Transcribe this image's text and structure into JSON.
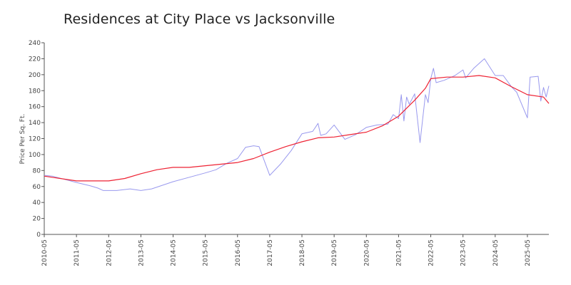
{
  "chart_data": {
    "type": "line",
    "title": "Residences at City Place vs Jacksonville",
    "xlabel": "",
    "ylabel": "Price Per Sq. Ft.",
    "ylim": [
      0,
      240
    ],
    "yticks": [
      0,
      20,
      40,
      60,
      80,
      100,
      120,
      140,
      160,
      180,
      200,
      220,
      240
    ],
    "xticks": [
      "2010-05",
      "2011-05",
      "2012-05",
      "2013-05",
      "2014-05",
      "2015-05",
      "2016-05",
      "2017-05",
      "2018-05",
      "2019-05",
      "2020-05",
      "2021-05",
      "2022-05",
      "2023-05",
      "2024-05",
      "2025-05"
    ],
    "xlim": [
      "2010-05",
      "2026-01"
    ],
    "grid": false,
    "legend": "none",
    "colors": {
      "series_1": "#9999ee",
      "series_2": "#ee2233"
    },
    "series": [
      {
        "values": [
          [
            "2010-05",
            74
          ],
          [
            "2010-08",
            73
          ],
          [
            "2011-05",
            65
          ],
          [
            "2011-10",
            61
          ],
          [
            "2012-01",
            58
          ],
          [
            "2012-03",
            55
          ],
          [
            "2012-08",
            55
          ],
          [
            "2013-01",
            57
          ],
          [
            "2013-05",
            55
          ],
          [
            "2013-09",
            57
          ],
          [
            "2014-05",
            66
          ],
          [
            "2015-05",
            77
          ],
          [
            "2015-09",
            81
          ],
          [
            "2016-01",
            89
          ],
          [
            "2016-05",
            95
          ],
          [
            "2016-08",
            109
          ],
          [
            "2016-11",
            111
          ],
          [
            "2017-01",
            110
          ],
          [
            "2017-05",
            74
          ],
          [
            "2017-09",
            88
          ],
          [
            "2018-01",
            105
          ],
          [
            "2018-05",
            126
          ],
          [
            "2018-09",
            129
          ],
          [
            "2018-11",
            139
          ],
          [
            "2018-12",
            124
          ],
          [
            "2019-02",
            126
          ],
          [
            "2019-05",
            137
          ],
          [
            "2019-09",
            119
          ],
          [
            "2020-01",
            125
          ],
          [
            "2020-05",
            134
          ],
          [
            "2020-09",
            137
          ],
          [
            "2021-01",
            138
          ],
          [
            "2021-03",
            150
          ],
          [
            "2021-05",
            145
          ],
          [
            "2021-06",
            175
          ],
          [
            "2021-07",
            142
          ],
          [
            "2021-08",
            172
          ],
          [
            "2021-09",
            163
          ],
          [
            "2021-11",
            176
          ],
          [
            "2022-01",
            115
          ],
          [
            "2022-03",
            175
          ],
          [
            "2022-04",
            165
          ],
          [
            "2022-05",
            195
          ],
          [
            "2022-06",
            208
          ],
          [
            "2022-07",
            190
          ],
          [
            "2022-10",
            193
          ],
          [
            "2023-02",
            199
          ],
          [
            "2023-05",
            206
          ],
          [
            "2023-06",
            196
          ],
          [
            "2023-09",
            208
          ],
          [
            "2023-11",
            214
          ],
          [
            "2024-01",
            220
          ],
          [
            "2024-05",
            199
          ],
          [
            "2024-08",
            199
          ],
          [
            "2024-11",
            185
          ],
          [
            "2025-01",
            178
          ],
          [
            "2025-05",
            146
          ],
          [
            "2025-06",
            197
          ],
          [
            "2025-09",
            198
          ],
          [
            "2025-10",
            167
          ],
          [
            "2025-11",
            184
          ],
          [
            "2025-12",
            172
          ],
          [
            "2026-01",
            186
          ]
        ]
      },
      {
        "values": [
          [
            "2010-05",
            73
          ],
          [
            "2011-05",
            67
          ],
          [
            "2012-05",
            67
          ],
          [
            "2012-11",
            70
          ],
          [
            "2013-05",
            76
          ],
          [
            "2013-11",
            81
          ],
          [
            "2014-05",
            84
          ],
          [
            "2014-11",
            84
          ],
          [
            "2015-05",
            86
          ],
          [
            "2015-11",
            88
          ],
          [
            "2016-05",
            90
          ],
          [
            "2016-11",
            95
          ],
          [
            "2017-05",
            103
          ],
          [
            "2017-11",
            110
          ],
          [
            "2018-05",
            116
          ],
          [
            "2018-11",
            121
          ],
          [
            "2019-05",
            122
          ],
          [
            "2019-11",
            125
          ],
          [
            "2020-05",
            128
          ],
          [
            "2020-11",
            136
          ],
          [
            "2021-05",
            148
          ],
          [
            "2021-11",
            168
          ],
          [
            "2022-03",
            183
          ],
          [
            "2022-05",
            195
          ],
          [
            "2022-11",
            197
          ],
          [
            "2023-05",
            197
          ],
          [
            "2023-11",
            199
          ],
          [
            "2024-05",
            196
          ],
          [
            "2024-11",
            185
          ],
          [
            "2025-05",
            175
          ],
          [
            "2025-11",
            172
          ],
          [
            "2026-01",
            164
          ]
        ]
      }
    ]
  }
}
